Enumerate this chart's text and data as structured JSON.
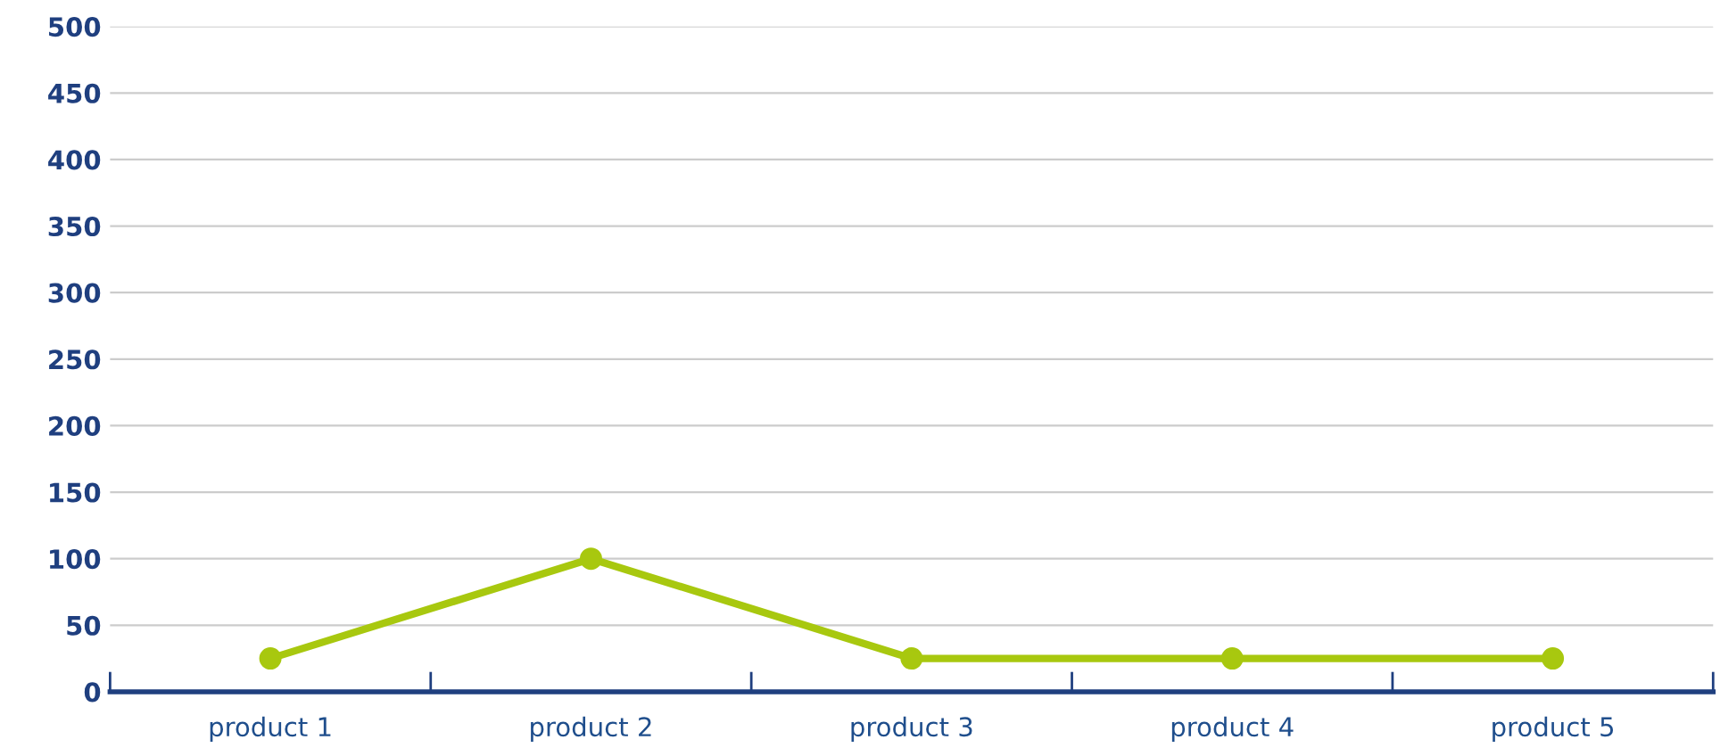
{
  "chart_data": {
    "type": "line",
    "categories": [
      "product 1",
      "product 2",
      "product 3",
      "product 4",
      "product 5"
    ],
    "series": [
      {
        "color": "#a8c80f",
        "values": [
          25,
          100,
          25,
          25,
          25
        ]
      }
    ],
    "ylim": [
      0,
      500
    ],
    "yticks": [
      0,
      50,
      100,
      150,
      200,
      250,
      300,
      350,
      400,
      450,
      500
    ],
    "grid": "y",
    "marker": "circle",
    "line_style": "solid"
  }
}
